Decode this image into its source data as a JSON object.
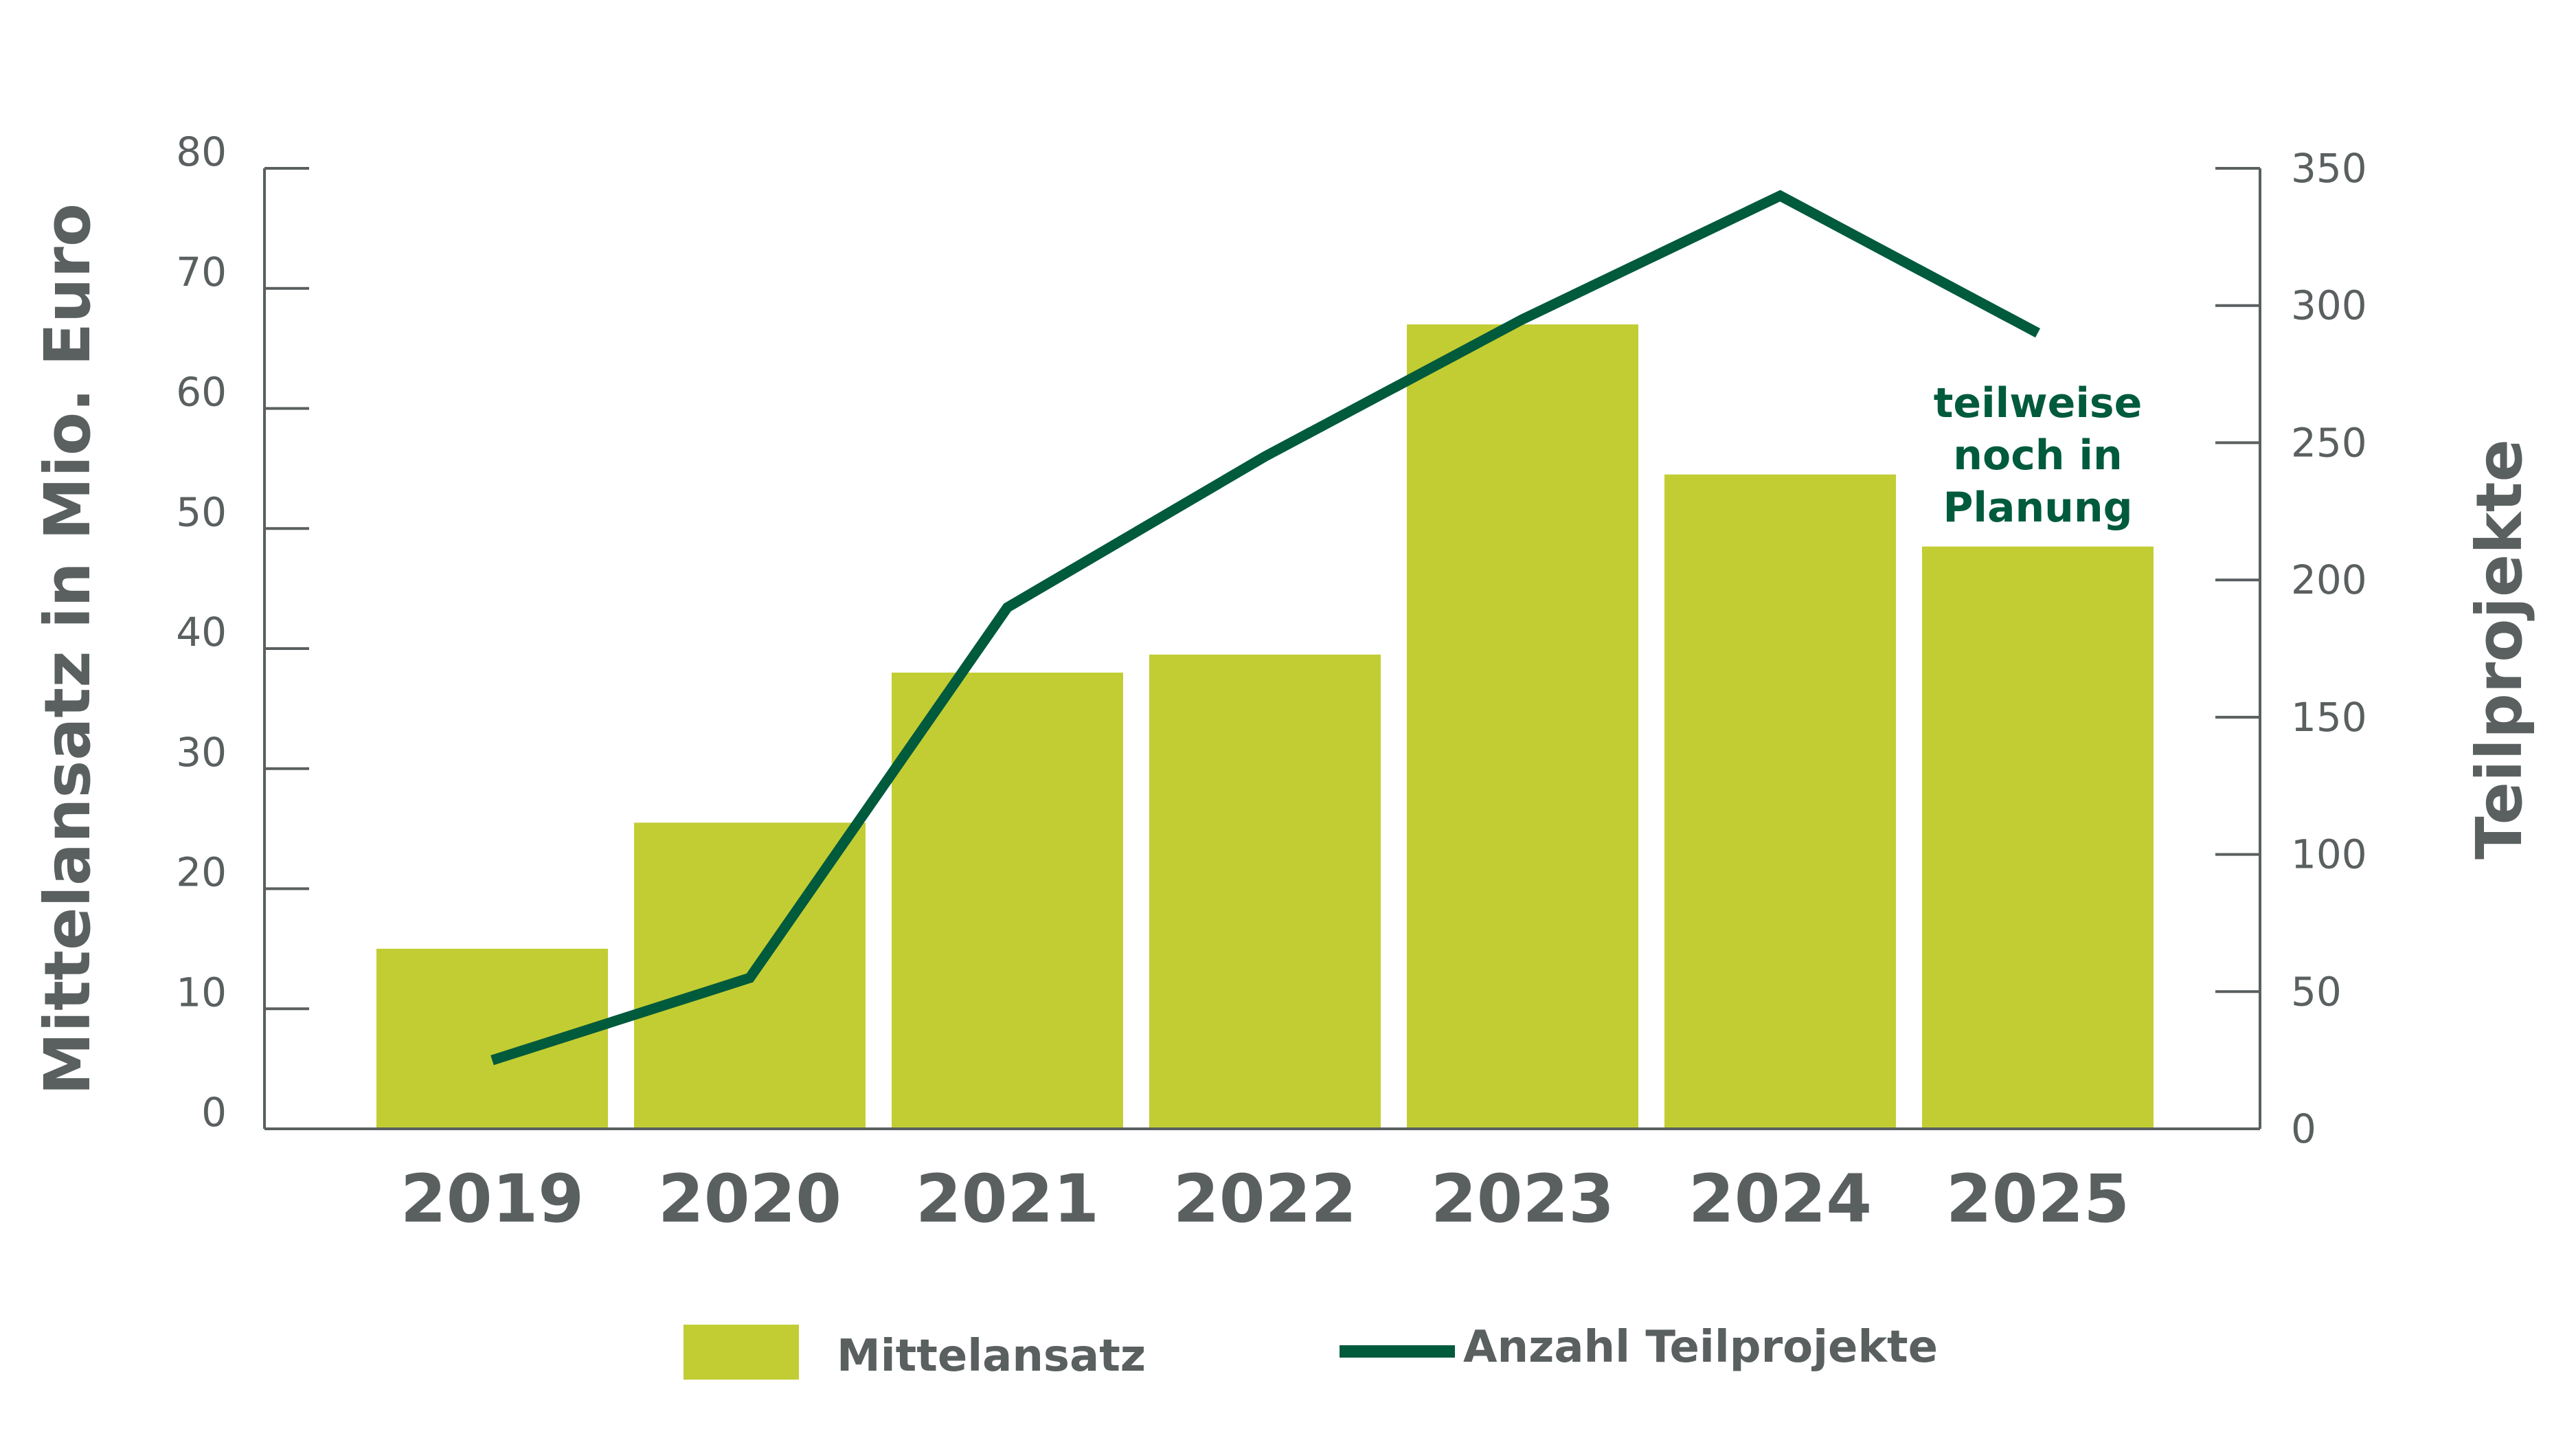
{
  "colors": {
    "bar": "#c2cd33",
    "line": "#005a3c",
    "axis": "#5a5f60",
    "annotation": "#005a3c"
  },
  "chart_data": {
    "type": "bar",
    "categories": [
      "2019",
      "2020",
      "2021",
      "2022",
      "2023",
      "2024",
      "2025"
    ],
    "series": [
      {
        "name": "Mittelansatz",
        "kind": "bar",
        "axis": "left",
        "values": [
          15,
          25.5,
          38,
          39.5,
          67,
          54.5,
          48.5
        ]
      },
      {
        "name": "Anzahl Teilprojekte",
        "kind": "line",
        "axis": "right",
        "values": [
          25,
          55,
          190,
          245,
          295,
          340,
          290
        ]
      }
    ],
    "y_left": {
      "label": "Mittelansatz in Mio. Euro",
      "range": [
        0,
        80
      ],
      "ticks": [
        0,
        10,
        20,
        30,
        40,
        50,
        60,
        70,
        80
      ]
    },
    "y_right": {
      "label": "Teilprojekte",
      "range": [
        0,
        350
      ],
      "ticks": [
        0,
        50,
        100,
        150,
        200,
        250,
        300,
        350
      ]
    },
    "annotation": {
      "lines": [
        "teilweise",
        "noch in",
        "Planung"
      ],
      "category": "2025"
    },
    "grid": false,
    "legend": {
      "placement": "bottom",
      "items": [
        "Mittelansatz",
        "Anzahl Teilprojekte"
      ]
    }
  }
}
